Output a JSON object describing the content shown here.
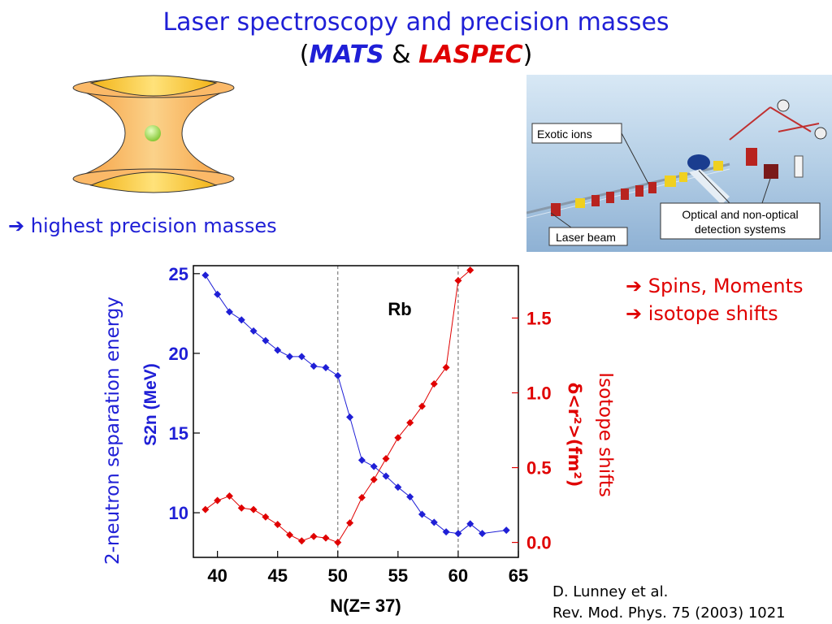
{
  "title": "Laser spectroscopy and precision masses",
  "subtitle": {
    "open": "(",
    "mats": "MATS",
    "amp": " & ",
    "laspec": "LASPEC",
    "close": ")"
  },
  "left_note": "➔ highest precision masses",
  "right_notes": [
    "➔ Spins, Moments",
    "➔ isotope shifts"
  ],
  "citation": [
    "D. Lunney et al.",
    "Rev. Mod. Phys. 75 (2003) 1021"
  ],
  "setup_labels": {
    "exotic_ions": "Exotic ions",
    "laser_beam": "Laser beam",
    "detection": [
      "Optical and non-optical",
      "detection systems"
    ]
  },
  "colors": {
    "blue": "#1f1fd6",
    "red": "#e00000",
    "trap_orange": "#f7a94a",
    "trap_ball": "#9bd84a"
  },
  "chart_data": {
    "type": "scatter",
    "title": "Rb",
    "xlabel": "N(Z= 37)",
    "ylabel_left": "2-neutron separation energy",
    "ylabel_left2": "S2n (MeV)",
    "ylabel_right": "Isotope shifts",
    "ylabel_right2": "δ<r²>(fm²)",
    "xlim": [
      38,
      65
    ],
    "ylim_left": [
      7.2,
      25.5
    ],
    "ylim_right": [
      -0.1,
      1.85
    ],
    "x_ticks": [
      40,
      45,
      50,
      55,
      60,
      65
    ],
    "y_left_ticks": [
      10,
      15,
      20,
      25
    ],
    "y_right_ticks": [
      "0.0",
      "0.5",
      "1.0",
      "1.5"
    ],
    "vlines": [
      50,
      60
    ],
    "series": [
      {
        "axis": "left",
        "color": "#1f1fd6",
        "x": [
          39,
          40,
          41,
          42,
          43,
          44,
          45,
          46,
          47,
          48,
          49,
          50,
          51,
          52,
          53,
          54,
          55,
          56,
          57,
          58,
          59,
          60,
          61,
          62,
          64
        ],
        "y": [
          24.9,
          23.7,
          22.6,
          22.1,
          21.4,
          20.8,
          20.2,
          19.8,
          19.8,
          19.2,
          19.1,
          18.6,
          16.0,
          13.3,
          12.9,
          12.3,
          11.6,
          11.0,
          9.9,
          9.4,
          8.8,
          8.7,
          9.3,
          8.7,
          8.9
        ]
      },
      {
        "axis": "right",
        "color": "#e00000",
        "x": [
          39,
          40,
          41,
          42,
          43,
          44,
          45,
          46,
          47,
          48,
          49,
          50,
          51,
          52,
          53,
          54,
          55,
          56,
          57,
          58,
          59,
          60,
          61
        ],
        "y": [
          0.22,
          0.28,
          0.31,
          0.23,
          0.22,
          0.17,
          0.12,
          0.05,
          0.01,
          0.04,
          0.03,
          0.0,
          0.13,
          0.3,
          0.42,
          0.56,
          0.7,
          0.8,
          0.91,
          1.06,
          1.17,
          1.75,
          1.82
        ]
      }
    ]
  }
}
